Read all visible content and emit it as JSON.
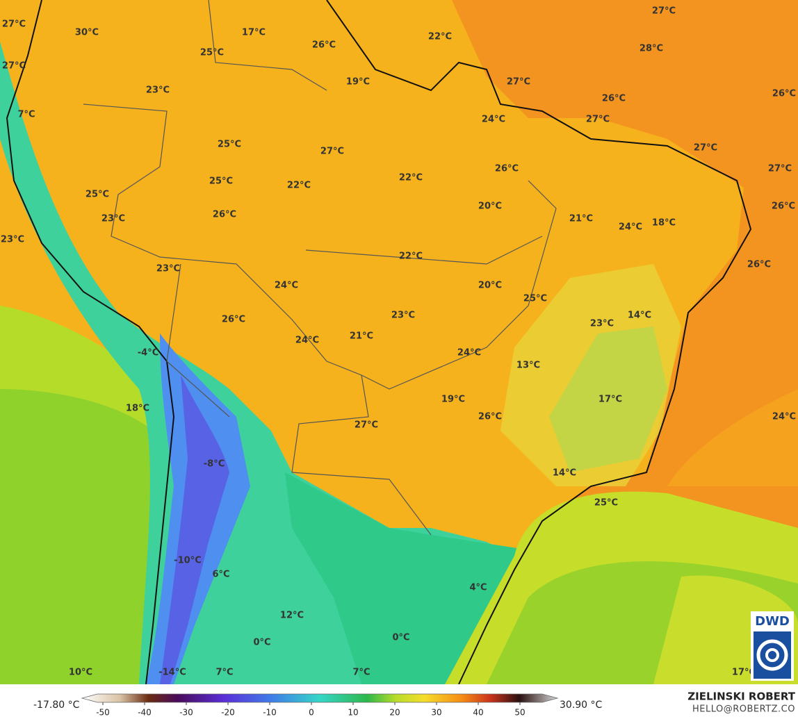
{
  "map": {
    "labels": [
      "27°C",
      "30°C",
      "17°C",
      "26°C",
      "22°C",
      "27°C",
      "28°C",
      "27°C",
      "25°C",
      "23°C",
      "19°C",
      "27°C",
      "26°C",
      "26°C",
      "7°C",
      "24°C",
      "27°C",
      "25°C",
      "27°C",
      "27°C",
      "26°C",
      "27°C",
      "25°C",
      "25°C",
      "22°C",
      "22°C",
      "20°C",
      "26°C",
      "23°C",
      "26°C",
      "21°C",
      "24°C",
      "18°C",
      "23°C",
      "22°C",
      "23°C",
      "26°C",
      "24°C",
      "20°C",
      "25°C",
      "14°C",
      "26°C",
      "23°C",
      "23°C",
      "24°C",
      "21°C",
      "-4°C",
      "24°C",
      "13°C",
      "19°C",
      "17°C",
      "18°C",
      "26°C",
      "24°C",
      "27°C",
      "-8°C",
      "14°C",
      "25°C",
      "-10°C",
      "6°C",
      "4°C",
      "12°C",
      "0°C",
      "0°C",
      "10°C",
      "-14°C",
      "7°C",
      "7°C",
      "17°C"
    ]
  },
  "colorbar": {
    "min_label": "-17.80 °C",
    "max_label": "30.90 °C",
    "ticks": [
      -50,
      -40,
      -30,
      -20,
      -10,
      0,
      10,
      20,
      30,
      40,
      50
    ]
  },
  "credits": {
    "author": "ZIELINSKI ROBERT",
    "email": "HELLO@ROBERTZ.CO"
  },
  "logo": "DWD"
}
